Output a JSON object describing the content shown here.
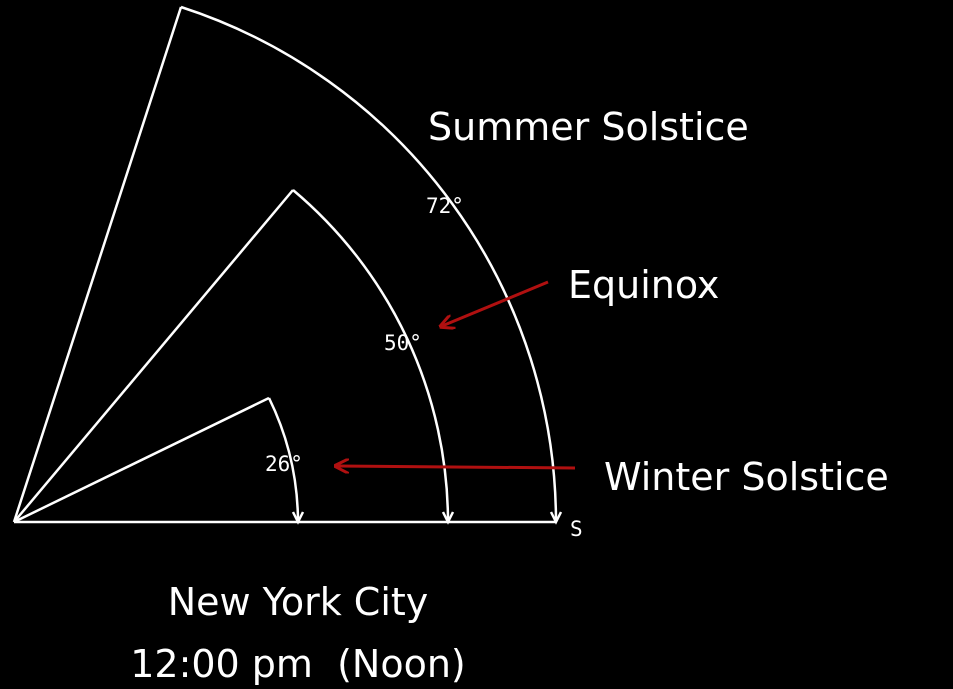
{
  "diagram": {
    "labels": {
      "summer": "Summer Solstice",
      "equinox": "Equinox",
      "winter": "Winter Solstice",
      "direction": "S"
    },
    "angles": {
      "summer": "72°",
      "equinox": "50°",
      "winter": "26°"
    },
    "caption": {
      "city": "New York City",
      "time": "12:00 pm  (Noon)"
    }
  }
}
